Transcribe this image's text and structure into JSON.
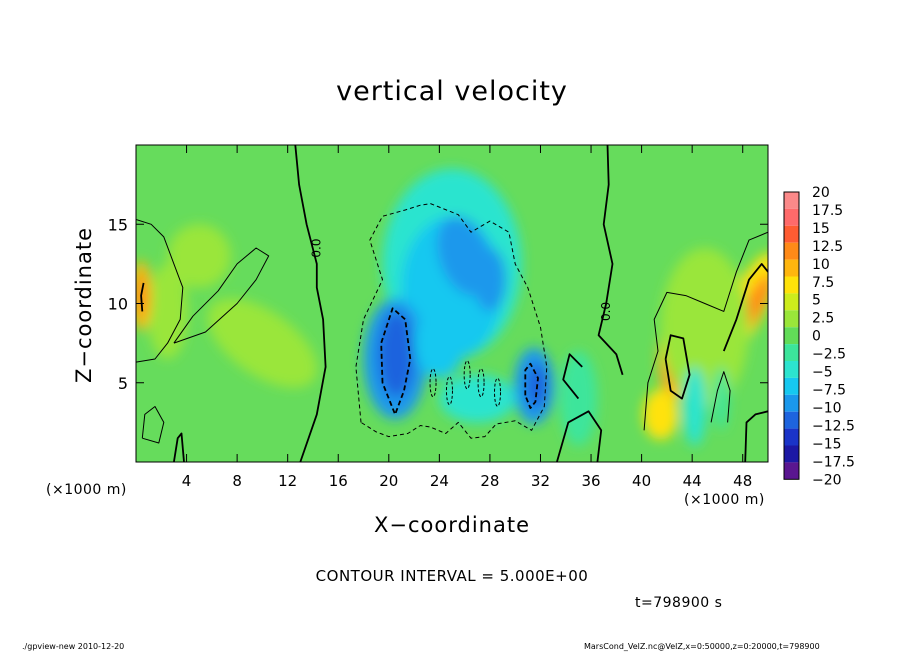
{
  "chart_data": {
    "type": "heatmap",
    "title": "vertical velocity",
    "xlabel": "X−coordinate",
    "ylabel": "Z−coordinate",
    "x_unit_left": "(×1000 m)",
    "x_unit_right": "(×1000 m)",
    "xlim": [
      0,
      50
    ],
    "ylim": [
      0,
      20
    ],
    "xticks": [
      4,
      8,
      12,
      16,
      20,
      24,
      28,
      32,
      36,
      40,
      44,
      48
    ],
    "yticks": [
      5,
      10,
      15
    ],
    "contour_label": "0.0",
    "contour_interval_text": "CONTOUR INTERVAL = 5.000E+00",
    "colorbar": {
      "levels": [
        "20",
        "17.5",
        "15",
        "12.5",
        "10",
        "7.5",
        "5",
        "2.5",
        "0",
        "−2.5",
        "−5",
        "−7.5",
        "−10",
        "−12.5",
        "−15",
        "−17.5",
        "−20"
      ],
      "colors": [
        "#fb8989",
        "#ff6a6a",
        "#ff5c32",
        "#ff8a18",
        "#ffb60e",
        "#ffe20a",
        "#cdec1c",
        "#9ae63a",
        "#62dc58",
        "#3ce59b",
        "#2ce4cf",
        "#16c8f0",
        "#1a98ec",
        "#1e64de",
        "#1a34c8",
        "#1c18a4",
        "#5a1690"
      ]
    },
    "time_text": "t=798900 s"
  },
  "footer": {
    "left": "./gpview-new   2010-12-20",
    "right": "MarsCond_VelZ.nc@VelZ,x=0:50000,z=0:20000,t=798900"
  }
}
